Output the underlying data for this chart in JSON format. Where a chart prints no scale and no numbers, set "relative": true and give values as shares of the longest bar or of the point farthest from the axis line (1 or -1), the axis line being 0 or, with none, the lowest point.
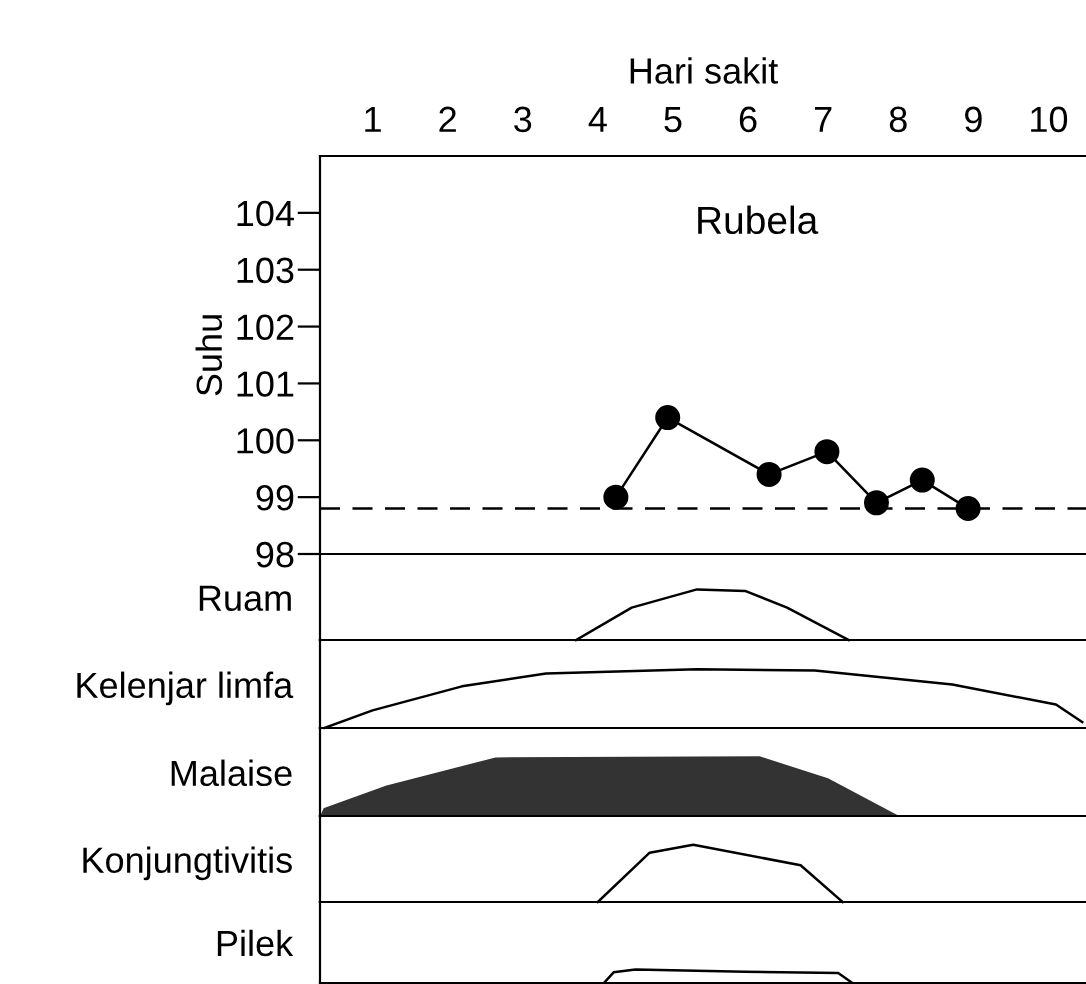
{
  "chart_data": [
    {
      "type": "line",
      "xlabel": "Hari sakit",
      "ylabel": "Suhu",
      "annotations": [
        "Rubela"
      ],
      "x": [
        4.24,
        4.93,
        6.28,
        7.05,
        7.71,
        8.32,
        8.93
      ],
      "series": [
        {
          "color": "#000000",
          "values": [
            99.0,
            100.4,
            99.4,
            99.8,
            98.9,
            99.3,
            98.8
          ]
        }
      ],
      "marker": "circle",
      "line_style": "solid",
      "xlim": [
        0.3,
        10.5
      ],
      "xticks": [
        1,
        2,
        3,
        4,
        5,
        6,
        7,
        8,
        9,
        10
      ],
      "ylim": [
        98,
        105
      ],
      "yticks": [
        98,
        99,
        100,
        101,
        102,
        103,
        104
      ],
      "ref_lines": [
        {
          "axis": "y",
          "value": 98.8,
          "line_style": "dashed",
          "color": "#000000"
        }
      ],
      "grid": false,
      "legend": false
    },
    {
      "type": "line",
      "ylabel": "Ruam",
      "relative": true,
      "tick_labels": false,
      "xlim": [
        0.3,
        10.5
      ],
      "x": [
        3.71,
        4.45,
        5.32,
        5.96,
        6.52,
        7.34
      ],
      "series": [
        {
          "color": "#000000",
          "values": [
            0,
            0.64,
            1,
            0.97,
            0.64,
            0
          ]
        }
      ]
    },
    {
      "type": "line",
      "ylabel": "Kelenjar limfa",
      "relative": true,
      "tick_labels": false,
      "xlim": [
        0.3,
        10.5
      ],
      "x": [
        0.36,
        1.0,
        2.19,
        3.31,
        5.32,
        6.89,
        8.72,
        10.1,
        10.45
      ],
      "series": [
        {
          "color": "#000000",
          "values": [
            0,
            0.3,
            0.71,
            0.93,
            1,
            0.98,
            0.74,
            0.4,
            0.1
          ]
        }
      ]
    },
    {
      "type": "area",
      "ylabel": "Malaise",
      "relative": true,
      "tick_labels": false,
      "xlim": [
        0.3,
        10.5
      ],
      "x": [
        0.32,
        0.36,
        1.19,
        2.64,
        6.15,
        7.07,
        7.98
      ],
      "series": [
        {
          "color": "#333333",
          "values": [
            0,
            0.12,
            0.5,
            0.98,
            1,
            0.62,
            0
          ]
        }
      ]
    },
    {
      "type": "line",
      "ylabel": "Konjungtivitis",
      "relative": true,
      "tick_labels": false,
      "xlim": [
        0.3,
        10.5
      ],
      "x": [
        4.0,
        4.69,
        5.27,
        6.7,
        7.26
      ],
      "series": [
        {
          "color": "#000000",
          "values": [
            0,
            0.86,
            1,
            0.64,
            0
          ]
        }
      ]
    },
    {
      "type": "line",
      "ylabel": "Pilek",
      "relative": true,
      "tick_labels": false,
      "xlim": [
        0.3,
        10.5
      ],
      "x": [
        4.08,
        4.21,
        4.5,
        5.96,
        7.2,
        7.39
      ],
      "series": [
        {
          "color": "#000000",
          "values": [
            0,
            0.79,
            1,
            0.84,
            0.74,
            0
          ]
        }
      ]
    }
  ]
}
